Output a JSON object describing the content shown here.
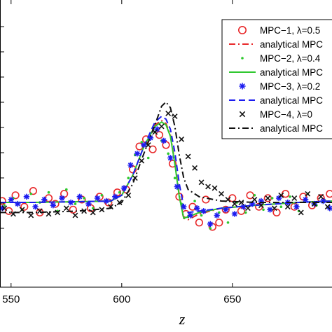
{
  "chart_data": {
    "type": "scatter",
    "xlabel": "z",
    "ylabel": "",
    "title": "",
    "xlim": [
      545,
      695
    ],
    "x_ticks": [
      550,
      600,
      650
    ],
    "x_tick_labels": [
      "550",
      "600",
      "650"
    ],
    "y_tick_count": 9,
    "legend_position": "top-right",
    "grid": false,
    "colors": {
      "mpc1": "#e8282a",
      "mpc2": "#2ec82e",
      "mpc3": "#1c1cf0",
      "mpc4": "#111111"
    },
    "series": [
      {
        "name": "MPC−1, λ=0.5",
        "kind": "markers",
        "marker": "circle",
        "color": "#e8282a",
        "x": [
          546,
          549,
          552,
          556,
          560,
          563,
          567,
          570,
          574,
          578,
          582,
          586,
          590,
          594,
          598,
          602,
          605,
          608,
          611,
          614,
          617,
          620,
          623,
          626,
          629,
          632,
          635,
          638,
          641,
          644,
          647,
          650,
          654,
          658,
          662,
          666,
          670,
          674,
          678,
          682,
          686,
          690,
          694
        ],
        "y": [
          6.0,
          5.3,
          6.4,
          5.6,
          6.7,
          5.2,
          6.2,
          5.8,
          6.5,
          5.4,
          6.1,
          5.5,
          6.3,
          5.9,
          6.6,
          6.8,
          8.2,
          9.8,
          10.3,
          9.6,
          10.6,
          9.9,
          8.6,
          6.3,
          5.1,
          5.6,
          4.5,
          6.1,
          4.2,
          4.5,
          5.4,
          6.2,
          5.3,
          6.4,
          5.6,
          6.2,
          5.2,
          6.5,
          5.6,
          6.3,
          5.7,
          6.2,
          6.5
        ]
      },
      {
        "name": "analytical MPC",
        "kind": "line",
        "dash": "dashdot",
        "color": "#e8282a",
        "x": [
          545,
          560,
          580,
          595,
          600,
          605,
          610,
          615,
          618,
          620,
          622,
          624,
          626,
          628,
          630,
          635,
          645,
          660,
          680,
          695
        ],
        "y": [
          5.9,
          5.9,
          5.95,
          6.0,
          6.4,
          7.8,
          9.8,
          11.3,
          11.6,
          11.4,
          10.6,
          8.7,
          6.4,
          4.8,
          4.7,
          5.1,
          5.5,
          5.7,
          5.9,
          6.0
        ]
      },
      {
        "name": "MPC−2, λ=0.4",
        "kind": "markers",
        "marker": "dot",
        "color": "#2ec82e",
        "x": [
          547,
          551,
          555,
          559,
          563,
          567,
          571,
          575,
          579,
          583,
          587,
          591,
          595,
          599,
          603,
          606,
          609,
          612,
          615,
          618,
          621,
          624,
          627,
          630,
          633,
          636,
          640,
          644,
          648,
          652,
          656,
          660,
          664,
          668,
          672,
          676,
          680,
          684,
          688,
          692
        ],
        "y": [
          5.7,
          6.2,
          5.4,
          6.5,
          5.9,
          6.6,
          5.3,
          6.8,
          5.8,
          6.2,
          5.5,
          6.4,
          6.0,
          6.6,
          7.6,
          9.2,
          10.1,
          9.0,
          10.8,
          10.2,
          9.3,
          7.6,
          5.8,
          4.9,
          6.0,
          5.0,
          4.1,
          5.2,
          4.5,
          5.9,
          5.2,
          6.4,
          5.4,
          6.2,
          5.6,
          6.3,
          5.3,
          6.5,
          5.7,
          6.0
        ]
      },
      {
        "name": "analytical MPC",
        "kind": "line",
        "dash": "solid",
        "color": "#2ec82e",
        "x": [
          545,
          560,
          580,
          595,
          600,
          605,
          610,
          615,
          618,
          620,
          622,
          624,
          626,
          628,
          630,
          635,
          645,
          660,
          680,
          695
        ],
        "y": [
          5.9,
          5.9,
          5.95,
          6.0,
          6.4,
          7.8,
          9.8,
          11.2,
          11.5,
          11.3,
          10.5,
          8.6,
          6.3,
          4.8,
          4.9,
          5.2,
          5.5,
          5.7,
          5.9,
          6.0
        ]
      },
      {
        "name": "MPC−3, λ=0.2",
        "kind": "markers",
        "marker": "asterisk",
        "color": "#1c1cf0",
        "x": [
          546,
          550,
          553,
          557,
          561,
          565,
          569,
          573,
          577,
          581,
          585,
          589,
          593,
          597,
          601,
          604,
          607,
          610,
          613,
          616,
          619,
          622,
          625,
          628,
          631,
          634,
          637,
          640,
          643,
          647,
          651,
          655,
          659,
          663,
          667,
          671,
          675,
          679,
          683,
          687,
          691,
          694
        ],
        "y": [
          5.5,
          6.1,
          5.8,
          6.3,
          5.6,
          6.1,
          5.7,
          6.2,
          5.9,
          6.3,
          5.8,
          6.2,
          6.0,
          6.3,
          6.9,
          8.5,
          9.3,
          9.9,
          10.4,
          11.0,
          10.2,
          9.0,
          7.0,
          5.6,
          5.0,
          5.5,
          5.3,
          4.4,
          5.0,
          5.4,
          5.1,
          5.6,
          5.8,
          6.0,
          5.4,
          6.2,
          5.9,
          5.6,
          6.1,
          5.8,
          6.0,
          5.5
        ]
      },
      {
        "name": "analytical MPC",
        "kind": "line",
        "dash": "dashed",
        "color": "#1c1cf0",
        "x": [
          545,
          560,
          580,
          595,
          600,
          605,
          610,
          615,
          618,
          620,
          622,
          624,
          626,
          628,
          630,
          635,
          645,
          660,
          680,
          695
        ],
        "y": [
          5.9,
          5.9,
          5.95,
          6.0,
          6.4,
          7.8,
          9.8,
          11.5,
          11.9,
          11.7,
          11.0,
          9.4,
          7.2,
          5.6,
          5.2,
          5.3,
          5.5,
          5.7,
          5.9,
          6.0
        ]
      },
      {
        "name": "MPC−4, λ=0",
        "kind": "markers",
        "marker": "cross",
        "color": "#111111",
        "x": [
          547,
          551,
          555,
          559,
          563,
          567,
          571,
          575,
          579,
          583,
          587,
          591,
          595,
          599,
          603,
          606,
          609,
          612,
          615,
          618,
          621,
          624,
          627,
          630,
          633,
          636,
          639,
          642,
          645,
          648,
          651,
          654,
          657,
          660,
          663,
          666,
          669,
          672,
          675,
          678,
          681,
          684,
          687,
          690,
          693
        ],
        "y": [
          5.5,
          5.1,
          5.4,
          5.0,
          5.3,
          5.1,
          5.2,
          5.5,
          5.0,
          5.3,
          5.2,
          5.4,
          5.6,
          5.9,
          6.4,
          7.6,
          8.8,
          9.9,
          10.8,
          11.2,
          12.1,
          11.9,
          10.3,
          9.1,
          8.3,
          7.3,
          7.0,
          6.9,
          6.5,
          6.1,
          5.8,
          5.9,
          5.5,
          6.1,
          5.7,
          6.2,
          5.5,
          6.4,
          5.6,
          6.2,
          5.2,
          6.5,
          5.8,
          6.3,
          5.6
        ]
      },
      {
        "name": "analytical MPC",
        "kind": "line",
        "dash": "dashdot",
        "color": "#111111",
        "x": [
          545,
          560,
          580,
          595,
          600,
          605,
          610,
          615,
          618,
          620,
          622,
          624,
          626,
          628,
          630,
          635,
          645,
          660,
          680,
          695
        ],
        "y": [
          5.2,
          5.2,
          5.3,
          5.5,
          5.9,
          7.2,
          9.3,
          11.3,
          12.6,
          12.9,
          12.5,
          11.2,
          9.2,
          7.6,
          6.8,
          6.3,
          6.0,
          5.9,
          5.9,
          5.9
        ]
      }
    ]
  }
}
